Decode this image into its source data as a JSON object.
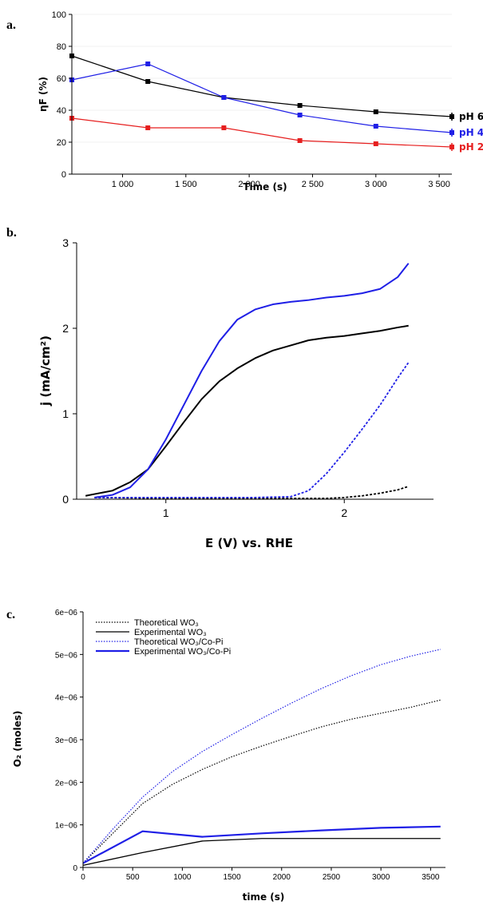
{
  "chart_data": [
    {
      "panel": "a.",
      "type": "line",
      "xlabel": "Time (s)",
      "ylabel": "ηF (%)",
      "xlim": [
        600,
        3600
      ],
      "ylim": [
        0,
        100
      ],
      "xticks": [
        1000,
        1500,
        2000,
        2500,
        3000,
        3500
      ],
      "xtick_labels": [
        "1 000",
        "1 500",
        "2 000",
        "2 500",
        "3 000",
        "3 500"
      ],
      "yticks": [
        0,
        20,
        40,
        60,
        80,
        100
      ],
      "ytick_labels": [
        "0",
        "20",
        "40",
        "60",
        "80",
        "100"
      ],
      "series": [
        {
          "name": "pH 6",
          "color": "#000000",
          "x": [
            600,
            1200,
            1800,
            2400,
            3000,
            3600
          ],
          "y": [
            74,
            58,
            48,
            43,
            39,
            36
          ]
        },
        {
          "name": "pH 4",
          "color": "#1f1fe6",
          "x": [
            600,
            1200,
            1800,
            2400,
            3000,
            3600
          ],
          "y": [
            59,
            69,
            48,
            37,
            30,
            26
          ]
        },
        {
          "name": "pH 2",
          "color": "#e61f1f",
          "x": [
            600,
            1200,
            1800,
            2400,
            3000,
            3600
          ],
          "y": [
            35,
            29,
            29,
            21,
            19,
            17
          ]
        }
      ]
    },
    {
      "panel": "b.",
      "type": "line",
      "xlabel": "E (V) vs. RHE",
      "ylabel": "j (mA/cm²)",
      "xlim": [
        0.5,
        2.5
      ],
      "ylim": [
        0,
        3
      ],
      "xticks": [
        1,
        2
      ],
      "xtick_labels": [
        "1",
        "2"
      ],
      "yticks": [
        0,
        1,
        2,
        3
      ],
      "ytick_labels": [
        "0",
        "1",
        "2",
        "3"
      ],
      "series": [
        {
          "style": "solid",
          "color": "#000000",
          "x": [
            0.55,
            0.6,
            0.7,
            0.8,
            0.9,
            1.0,
            1.1,
            1.2,
            1.3,
            1.4,
            1.5,
            1.6,
            1.7,
            1.8,
            1.9,
            2.0,
            2.1,
            2.2,
            2.3,
            2.36
          ],
          "y": [
            0.04,
            0.06,
            0.1,
            0.2,
            0.35,
            0.62,
            0.9,
            1.17,
            1.38,
            1.53,
            1.65,
            1.74,
            1.8,
            1.86,
            1.89,
            1.91,
            1.94,
            1.97,
            2.01,
            2.03
          ]
        },
        {
          "style": "solid",
          "color": "#1f1fe6",
          "x": [
            0.6,
            0.7,
            0.8,
            0.9,
            1.0,
            1.1,
            1.2,
            1.3,
            1.4,
            1.5,
            1.6,
            1.7,
            1.8,
            1.9,
            2.0,
            2.1,
            2.2,
            2.3,
            2.36
          ],
          "y": [
            0.02,
            0.05,
            0.14,
            0.35,
            0.7,
            1.1,
            1.5,
            1.85,
            2.1,
            2.22,
            2.28,
            2.31,
            2.33,
            2.36,
            2.38,
            2.41,
            2.46,
            2.6,
            2.76
          ]
        },
        {
          "style": "dashed",
          "color": "#000000",
          "x": [
            0.6,
            1.0,
            1.5,
            1.9,
            2.0,
            2.1,
            2.2,
            2.3,
            2.36
          ],
          "y": [
            0.02,
            0.01,
            0.01,
            0.01,
            0.02,
            0.04,
            0.07,
            0.11,
            0.15
          ]
        },
        {
          "style": "dashed",
          "color": "#1f1fe6",
          "x": [
            0.6,
            1.0,
            1.5,
            1.7,
            1.8,
            1.9,
            2.0,
            2.1,
            2.2,
            2.3,
            2.36
          ],
          "y": [
            0.02,
            0.02,
            0.02,
            0.03,
            0.1,
            0.3,
            0.55,
            0.82,
            1.1,
            1.42,
            1.6
          ]
        }
      ]
    },
    {
      "panel": "c.",
      "type": "line",
      "xlabel": "time (s)",
      "ylabel": "O₂ (moles)",
      "xlim": [
        0,
        3650
      ],
      "ylim": [
        0,
        6e-06
      ],
      "xticks": [
        0,
        500,
        1000,
        1500,
        2000,
        2500,
        3000,
        3500
      ],
      "xtick_labels": [
        "0",
        "500",
        "1000",
        "1500",
        "2000",
        "2500",
        "3000",
        "3500"
      ],
      "yticks": [
        0,
        1e-06,
        2e-06,
        3e-06,
        4e-06,
        5e-06,
        6e-06
      ],
      "ytick_labels": [
        "0",
        "1e−06",
        "2e−06",
        "3e−06",
        "4e−06",
        "5e−06",
        "6e−06"
      ],
      "legend": "top-left",
      "series": [
        {
          "name": "Theoretical WO₃",
          "style": "dotted",
          "color": "#000000",
          "x": [
            0,
            300,
            600,
            900,
            1200,
            1500,
            1800,
            2100,
            2400,
            2700,
            3000,
            3300,
            3600
          ],
          "y": [
            1e-07,
            8e-07,
            1.5e-06,
            1.95e-06,
            2.3e-06,
            2.6e-06,
            2.85e-06,
            3.08e-06,
            3.3e-06,
            3.48e-06,
            3.62e-06,
            3.76e-06,
            3.93e-06
          ]
        },
        {
          "name": "Experimental WO₃",
          "style": "solid",
          "color": "#000000",
          "x": [
            0,
            600,
            1200,
            1800,
            2400,
            3000,
            3600
          ],
          "y": [
            5e-08,
            3.5e-07,
            6.2e-07,
            6.8e-07,
            6.8e-07,
            6.8e-07,
            6.8e-07
          ]
        },
        {
          "name": "Theoretical WO₃/Co-Pi",
          "style": "dotted",
          "color": "#1f1fe6",
          "x": [
            0,
            300,
            600,
            900,
            1200,
            1500,
            1800,
            2100,
            2400,
            2700,
            3000,
            3300,
            3600
          ],
          "y": [
            1e-07,
            9e-07,
            1.65e-06,
            2.25e-06,
            2.72e-06,
            3.12e-06,
            3.5e-06,
            3.86e-06,
            4.2e-06,
            4.5e-06,
            4.76e-06,
            4.96e-06,
            5.12e-06
          ]
        },
        {
          "name": "Experimental WO₃/Co-Pi",
          "style": "solid-thick",
          "color": "#1f1fe6",
          "x": [
            0,
            600,
            1200,
            1800,
            2400,
            3000,
            3600
          ],
          "y": [
            1e-07,
            8.5e-07,
            7.2e-07,
            8e-07,
            8.7e-07,
            9.3e-07,
            9.6e-07
          ]
        }
      ]
    }
  ]
}
